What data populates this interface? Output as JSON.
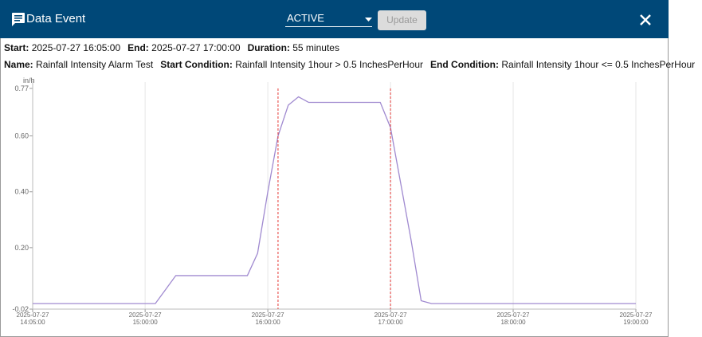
{
  "header": {
    "title": "Data Event",
    "status": "ACTIVE",
    "button": "Update"
  },
  "summary": [
    {
      "label": "Start:",
      "value": "2025-07-27 16:05:00"
    },
    {
      "label": "End:",
      "value": "2025-07-27 17:00:00"
    },
    {
      "label": "Duration:",
      "value": "55 minutes"
    }
  ],
  "details": [
    {
      "label": "Name:",
      "value": "Rainfall Intensity Alarm Test"
    },
    {
      "label": "Start Condition:",
      "value": "Rainfall Intensity 1hour > 0.5 InchesPerHour"
    },
    {
      "label": "End Condition:",
      "value": "Rainfall Intensity 1hour <= 0.5 InchesPerHour"
    }
  ],
  "chart_data": {
    "type": "line",
    "y_unit": "in/h",
    "x": [
      "2025-07-27 14:05:00",
      "2025-07-27 15:05:00",
      "2025-07-27 15:10:00",
      "2025-07-27 15:15:00",
      "2025-07-27 15:50:00",
      "2025-07-27 15:55:00",
      "2025-07-27 16:00:00",
      "2025-07-27 16:05:00",
      "2025-07-27 16:10:00",
      "2025-07-27 16:15:00",
      "2025-07-27 16:20:00",
      "2025-07-27 16:55:00",
      "2025-07-27 17:00:00",
      "2025-07-27 17:05:00",
      "2025-07-27 17:10:00",
      "2025-07-27 17:15:00",
      "2025-07-27 17:20:00",
      "2025-07-27 19:00:00"
    ],
    "series": [
      {
        "color": "#a08ad0",
        "values": [
          0,
          0,
          0.05,
          0.1,
          0.1,
          0.18,
          0.4,
          0.6,
          0.71,
          0.74,
          0.72,
          0.72,
          0.63,
          0.43,
          0.23,
          0.01,
          0,
          0
        ]
      }
    ],
    "markers": [
      "2025-07-27 16:05:00",
      "2025-07-27 17:00:00"
    ],
    "marker_color": "#e53935",
    "xlim": [
      "2025-07-27 14:05:00",
      "2025-07-27 19:00:00"
    ],
    "xticks": [
      {
        "value": "2025-07-27 14:05:00",
        "label": [
          "2025-07-27",
          "14:05:00"
        ]
      },
      {
        "value": "2025-07-27 15:00:00",
        "label": [
          "2025-07-27",
          "15:00:00"
        ]
      },
      {
        "value": "2025-07-27 16:00:00",
        "label": [
          "2025-07-27",
          "16:00:00"
        ]
      },
      {
        "value": "2025-07-27 17:00:00",
        "label": [
          "2025-07-27",
          "17:00:00"
        ]
      },
      {
        "value": "2025-07-27 18:00:00",
        "label": [
          "2025-07-27",
          "18:00:00"
        ]
      },
      {
        "value": "2025-07-27 19:00:00",
        "label": [
          "2025-07-27",
          "19:00:00"
        ]
      }
    ],
    "ylim": [
      -0.02,
      0.77
    ],
    "yticks": [
      -0.02,
      {
        "value": 0.2,
        "label": "0.20"
      },
      {
        "value": 0.4,
        "label": "0.40"
      },
      {
        "value": 0.6,
        "label": "0.60"
      },
      0.77
    ],
    "grid": "x"
  }
}
